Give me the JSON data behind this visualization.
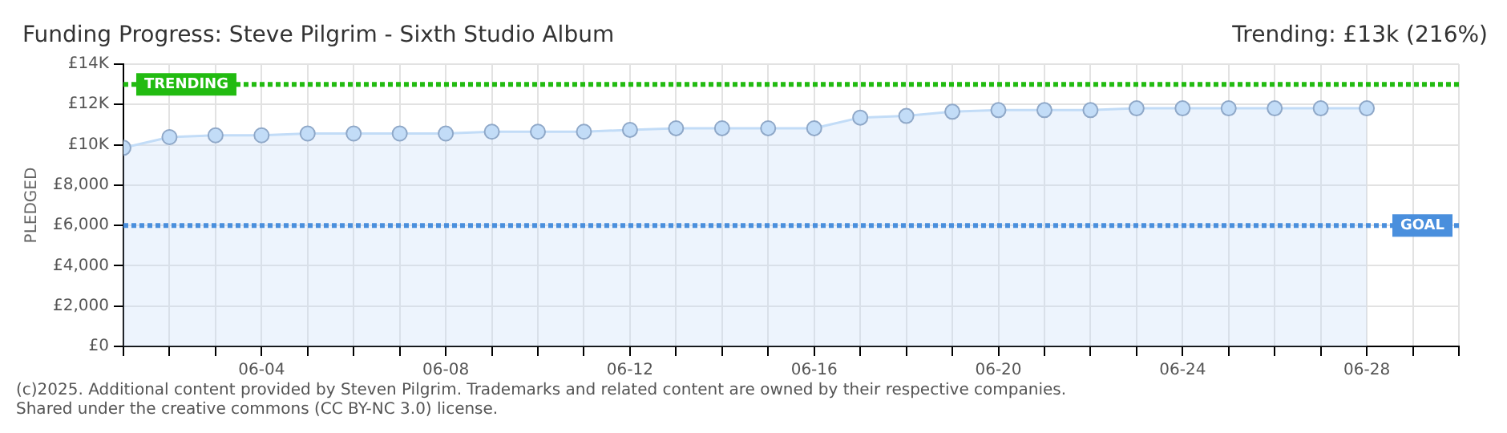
{
  "chart_data": {
    "type": "area",
    "title": "Funding Progress: Steve Pilgrim - Sixth Studio Album",
    "subtitle": "Trending: £13k (216%)",
    "ylabel": "PLEDGED",
    "x": [
      "--06-01",
      "--06-02",
      "--06-03",
      "--06-04",
      "--06-05",
      "--06-06",
      "--06-07",
      "--06-08",
      "--06-09",
      "--06-10",
      "--06-11",
      "--06-12",
      "--06-13",
      "--06-14",
      "--06-15",
      "--06-16",
      "--06-17",
      "--06-18",
      "--06-19",
      "--06-20",
      "--06-21",
      "--06-22",
      "--06-23",
      "--06-24",
      "--06-25",
      "--06-26",
      "--06-27",
      "--06-28"
    ],
    "series": [
      {
        "color": "#c2dcf7",
        "values": [
          9850,
          10380,
          10470,
          10470,
          10560,
          10560,
          10560,
          10560,
          10650,
          10650,
          10650,
          10740,
          10820,
          10820,
          10820,
          10820,
          11350,
          11430,
          11640,
          11720,
          11720,
          11720,
          11810,
          11810,
          11810,
          11810,
          11810,
          11810
        ]
      }
    ],
    "xlim": [
      "--06-01",
      "--06-30"
    ],
    "xticks": [
      {
        "value": "--06-01",
        "label": null
      },
      {
        "value": "--06-02",
        "label": null
      },
      {
        "value": "--06-03",
        "label": null
      },
      {
        "value": "--06-04",
        "label": "06-04"
      },
      {
        "value": "--06-05",
        "label": null
      },
      {
        "value": "--06-06",
        "label": null
      },
      {
        "value": "--06-07",
        "label": null
      },
      {
        "value": "--06-08",
        "label": "06-08"
      },
      {
        "value": "--06-09",
        "label": null
      },
      {
        "value": "--06-10",
        "label": null
      },
      {
        "value": "--06-11",
        "label": null
      },
      {
        "value": "--06-12",
        "label": "06-12"
      },
      {
        "value": "--06-13",
        "label": null
      },
      {
        "value": "--06-14",
        "label": null
      },
      {
        "value": "--06-15",
        "label": null
      },
      {
        "value": "--06-16",
        "label": "06-16"
      },
      {
        "value": "--06-17",
        "label": null
      },
      {
        "value": "--06-18",
        "label": null
      },
      {
        "value": "--06-19",
        "label": null
      },
      {
        "value": "--06-20",
        "label": "06-20"
      },
      {
        "value": "--06-21",
        "label": null
      },
      {
        "value": "--06-22",
        "label": null
      },
      {
        "value": "--06-23",
        "label": null
      },
      {
        "value": "--06-24",
        "label": "06-24"
      },
      {
        "value": "--06-25",
        "label": null
      },
      {
        "value": "--06-26",
        "label": null
      },
      {
        "value": "--06-27",
        "label": null
      },
      {
        "value": "--06-28",
        "label": "06-28"
      },
      {
        "value": "--06-29",
        "label": null
      },
      {
        "value": "--06-30",
        "label": null
      }
    ],
    "ylim": [
      0,
      14000
    ],
    "yticks": [
      {
        "value": 0,
        "label": "£0"
      },
      {
        "value": 2000,
        "label": "£2,000"
      },
      {
        "value": 4000,
        "label": "£4,000"
      },
      {
        "value": 6000,
        "label": "£6,000"
      },
      {
        "value": 8000,
        "label": "£8,000"
      },
      {
        "value": 10000,
        "label": "£10K"
      },
      {
        "value": 12000,
        "label": "£12K"
      },
      {
        "value": 14000,
        "label": "£14K"
      }
    ],
    "ref_lines": [
      {
        "axis": "y",
        "value": 13000,
        "label": "TRENDING",
        "color": "#22bb11",
        "line_style": "dotted"
      },
      {
        "axis": "y",
        "value": 6000,
        "label": "GOAL",
        "color": "#4a8fdd",
        "line_style": "dotted"
      }
    ],
    "annotations": [
      "(c)2025. Additional content provided by Steven Pilgrim. Trademarks and related content are owned by their respective companies.",
      "Shared under the creative commons (CC BY-NC 3.0) license."
    ],
    "grid": true,
    "legend": false,
    "marker": "circle"
  }
}
